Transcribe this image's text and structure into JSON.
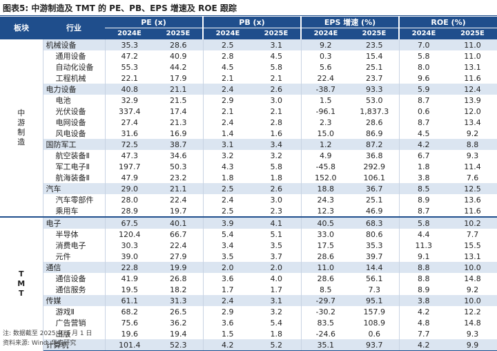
{
  "title": "图表5:  中游制造及 TMT 的 PE、PB、EPS 增速及 ROE 跟踪",
  "headers": {
    "sector": "板块",
    "industry": "行业",
    "groups": [
      "PE (x)",
      "PB (x)",
      "EPS 增速 (%)",
      "ROE (%)"
    ],
    "years": [
      "2024E",
      "2025E"
    ]
  },
  "sectors": [
    {
      "name": "中游制造",
      "rows": [
        {
          "name": "机械设备",
          "cat": true,
          "v": [
            "35.3",
            "28.6",
            "2.5",
            "3.1",
            "9.2",
            "23.5",
            "7.0",
            "11.0"
          ]
        },
        {
          "name": "通用设备",
          "cat": false,
          "v": [
            "47.2",
            "40.9",
            "2.8",
            "4.5",
            "0.3",
            "15.4",
            "5.8",
            "11.0"
          ]
        },
        {
          "name": "自动化设备",
          "cat": false,
          "v": [
            "55.3",
            "44.2",
            "4.5",
            "5.8",
            "5.6",
            "25.1",
            "8.0",
            "13.1"
          ]
        },
        {
          "name": "工程机械",
          "cat": false,
          "v": [
            "22.1",
            "17.9",
            "2.1",
            "2.1",
            "22.4",
            "23.7",
            "9.6",
            "11.6"
          ]
        },
        {
          "name": "电力设备",
          "cat": true,
          "v": [
            "40.8",
            "21.1",
            "2.4",
            "2.6",
            "-38.7",
            "93.3",
            "5.9",
            "12.4"
          ]
        },
        {
          "name": "电池",
          "cat": false,
          "v": [
            "32.9",
            "21.5",
            "2.9",
            "3.0",
            "1.5",
            "53.0",
            "8.7",
            "13.9"
          ]
        },
        {
          "name": "光伏设备",
          "cat": false,
          "v": [
            "337.4",
            "17.4",
            "2.1",
            "2.1",
            "-96.1",
            "1,837.3",
            "0.6",
            "12.0"
          ]
        },
        {
          "name": "电网设备",
          "cat": false,
          "v": [
            "27.4",
            "21.3",
            "2.4",
            "2.8",
            "2.3",
            "28.6",
            "8.7",
            "13.4"
          ]
        },
        {
          "name": "风电设备",
          "cat": false,
          "v": [
            "31.6",
            "16.9",
            "1.4",
            "1.6",
            "15.0",
            "86.9",
            "4.5",
            "9.2"
          ]
        },
        {
          "name": "国防军工",
          "cat": true,
          "v": [
            "72.5",
            "38.7",
            "3.1",
            "3.4",
            "1.2",
            "87.2",
            "4.2",
            "8.8"
          ]
        },
        {
          "name": "航空装备Ⅱ",
          "cat": false,
          "v": [
            "47.3",
            "34.6",
            "3.2",
            "3.2",
            "4.9",
            "36.8",
            "6.7",
            "9.3"
          ]
        },
        {
          "name": "军工电子Ⅱ",
          "cat": false,
          "v": [
            "197.7",
            "50.3",
            "4.3",
            "5.8",
            "-45.8",
            "292.9",
            "1.8",
            "11.4"
          ]
        },
        {
          "name": "航海装备Ⅱ",
          "cat": false,
          "v": [
            "47.9",
            "23.2",
            "1.8",
            "1.8",
            "152.0",
            "106.1",
            "3.8",
            "7.6"
          ]
        },
        {
          "name": "汽车",
          "cat": true,
          "v": [
            "29.0",
            "21.1",
            "2.5",
            "2.6",
            "18.8",
            "36.7",
            "8.5",
            "12.5"
          ]
        },
        {
          "name": "汽车零部件",
          "cat": false,
          "v": [
            "28.0",
            "22.4",
            "2.4",
            "3.0",
            "24.3",
            "25.1",
            "8.9",
            "13.6"
          ]
        },
        {
          "name": "乘用车",
          "cat": false,
          "v": [
            "28.9",
            "19.7",
            "2.5",
            "2.3",
            "12.3",
            "46.9",
            "8.7",
            "11.6"
          ]
        }
      ]
    },
    {
      "name": "TMT",
      "rows": [
        {
          "name": "电子",
          "cat": true,
          "v": [
            "67.5",
            "40.1",
            "3.9",
            "4.1",
            "40.5",
            "68.3",
            "5.8",
            "10.2"
          ]
        },
        {
          "name": "半导体",
          "cat": false,
          "v": [
            "120.4",
            "66.7",
            "5.4",
            "5.1",
            "33.0",
            "80.6",
            "4.4",
            "7.7"
          ]
        },
        {
          "name": "消费电子",
          "cat": false,
          "v": [
            "30.3",
            "22.4",
            "3.4",
            "3.5",
            "17.5",
            "35.3",
            "11.3",
            "15.5"
          ]
        },
        {
          "name": "元件",
          "cat": false,
          "v": [
            "39.0",
            "27.9",
            "3.5",
            "3.7",
            "28.6",
            "39.7",
            "9.1",
            "13.1"
          ]
        },
        {
          "name": "通信",
          "cat": true,
          "v": [
            "22.8",
            "19.9",
            "2.0",
            "2.0",
            "11.0",
            "14.4",
            "8.8",
            "10.0"
          ]
        },
        {
          "name": "通信设备",
          "cat": false,
          "v": [
            "41.9",
            "26.8",
            "3.6",
            "4.0",
            "28.6",
            "56.1",
            "8.8",
            "14.8"
          ]
        },
        {
          "name": "通信服务",
          "cat": false,
          "v": [
            "19.5",
            "18.2",
            "1.7",
            "1.7",
            "8.5",
            "7.3",
            "8.9",
            "9.2"
          ]
        },
        {
          "name": "传媒",
          "cat": true,
          "v": [
            "61.1",
            "31.3",
            "2.4",
            "3.1",
            "-29.7",
            "95.1",
            "3.8",
            "10.0"
          ]
        },
        {
          "name": "游戏Ⅱ",
          "cat": false,
          "v": [
            "68.2",
            "26.5",
            "2.9",
            "3.2",
            "-30.2",
            "157.9",
            "4.2",
            "12.2"
          ]
        },
        {
          "name": "广告营销",
          "cat": false,
          "v": [
            "75.6",
            "36.2",
            "3.6",
            "5.4",
            "83.5",
            "108.9",
            "4.8",
            "14.8"
          ]
        },
        {
          "name": "出版",
          "cat": false,
          "v": [
            "19.6",
            "19.4",
            "1.5",
            "1.8",
            "-24.6",
            "0.6",
            "7.7",
            "9.3"
          ]
        },
        {
          "name": "计算机",
          "cat": true,
          "v": [
            "101.4",
            "52.3",
            "4.2",
            "5.2",
            "35.1",
            "93.7",
            "4.2",
            "9.9"
          ]
        }
      ]
    }
  ],
  "notes": [
    "注:  数据截至 2025 年 3 月 1 日",
    "资料来源:  Wind, 华泰研究"
  ]
}
